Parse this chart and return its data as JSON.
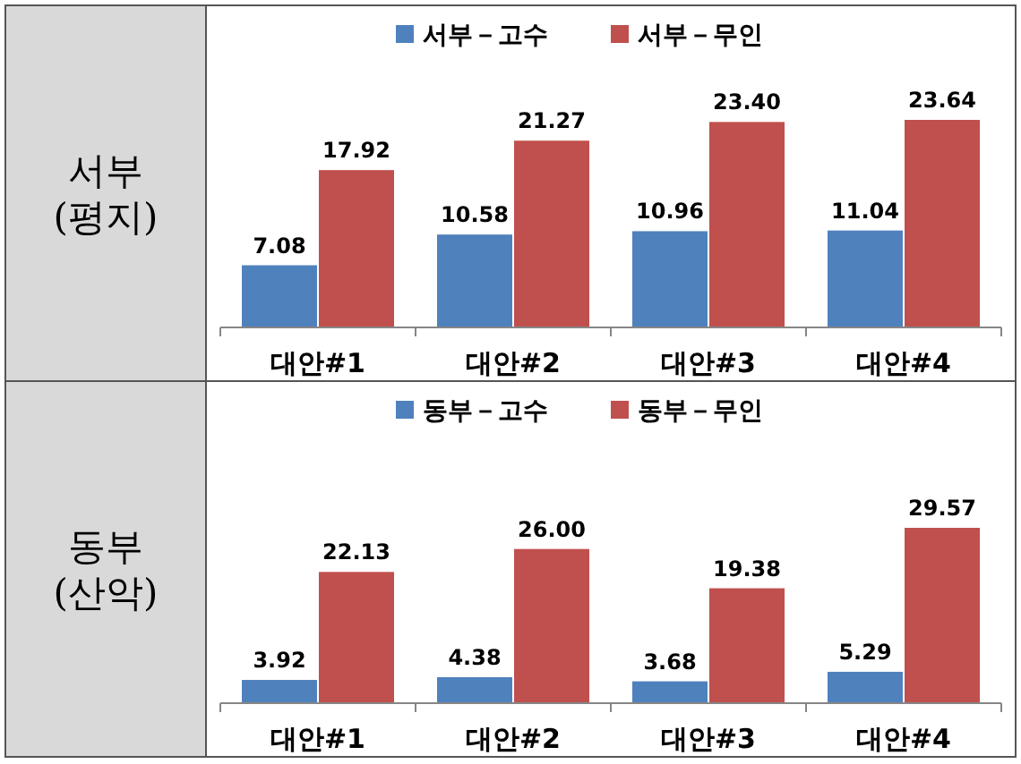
{
  "chart_data": [
    {
      "type": "bar",
      "ylabel": "서부 (평지)",
      "categories": [
        "대안#1",
        "대안#2",
        "대안#3",
        "대안#4"
      ],
      "legend": "top",
      "series": [
        {
          "name": "서부－고수",
          "color": "#4f81bd",
          "values": [
            7.08,
            10.58,
            10.96,
            11.04
          ],
          "value_labels": [
            "7.08",
            "10.58",
            "10.96",
            "11.04"
          ]
        },
        {
          "name": "서부－무인",
          "color": "#c0504d",
          "values": [
            17.92,
            21.27,
            23.4,
            23.64
          ],
          "value_labels": [
            "17.92",
            "21.27",
            "23.40",
            "23.64"
          ]
        }
      ]
    },
    {
      "type": "bar",
      "ylabel": "동부 (산악)",
      "categories": [
        "대안#1",
        "대안#2",
        "대안#3",
        "대안#4"
      ],
      "legend": "top",
      "series": [
        {
          "name": "동부－고수",
          "color": "#4f81bd",
          "values": [
            3.92,
            4.38,
            3.68,
            5.29
          ],
          "value_labels": [
            "3.92",
            "4.38",
            "3.68",
            "5.29"
          ]
        },
        {
          "name": "동부－무인",
          "color": "#c0504d",
          "values": [
            22.13,
            26,
            19.38,
            29.57
          ],
          "value_labels": [
            "22.13",
            "26.00",
            "19.38",
            "29.57"
          ]
        }
      ]
    }
  ]
}
